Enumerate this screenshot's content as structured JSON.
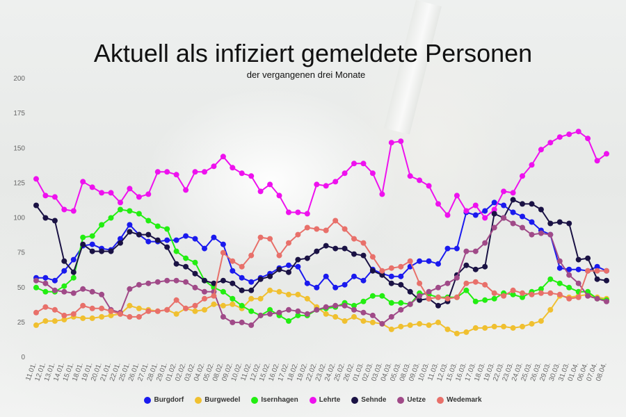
{
  "chart_data": {
    "type": "line",
    "title": "Aktuell als infiziert gemeldete Personen",
    "subtitle": "der vergangenen drei Monate",
    "xlabel": "",
    "ylabel": "",
    "ylim": [
      0,
      200
    ],
    "yticks": [
      0,
      25,
      50,
      75,
      100,
      125,
      150,
      175,
      200
    ],
    "grid": false,
    "legend": "bottom",
    "x": [
      "11.01.",
      "12.01.",
      "13.01.",
      "14.01.",
      "15.01.",
      "18.01.",
      "19.01.",
      "20.01.",
      "21.01.",
      "22.01.",
      "25.01.",
      "26.01.",
      "27.01.",
      "28.01.",
      "29.01.",
      "01.02.",
      "02.02.",
      "03.02.",
      "04.02.",
      "05.02.",
      "08.02.",
      "09.02.",
      "10.02.",
      "11.02.",
      "12.02.",
      "15.02.",
      "16.02.",
      "17.02.",
      "18.02.",
      "19.02.",
      "22.02.",
      "23.02.",
      "24.02.",
      "25.02.",
      "26.02.",
      "01.03.",
      "02.03.",
      "03.03.",
      "04.03.",
      "05.03.",
      "08.03.",
      "09.03.",
      "10.03.",
      "11.03.",
      "12.03.",
      "15.03.",
      "16.03.",
      "17.03.",
      "18.03.",
      "19.03.",
      "22.03.",
      "23.03.",
      "24.03.",
      "25.03.",
      "26.03.",
      "29.03.",
      "30.03.",
      "31.03.",
      "01.04.",
      "06.04.",
      "07.04.",
      "08.04."
    ],
    "xtick_labels": [
      "11.01.",
      "12.01.",
      "13.01.",
      "14.01.",
      "15.01.",
      "18.01.",
      "19.01.",
      "20.01.",
      "21.01.",
      "22.01.",
      "25.01.",
      "26.01.",
      "27.01.",
      "28.01.",
      "29.01.",
      "01.02.",
      "02.02.",
      "03.02.",
      "04.02.",
      "05.02.",
      "08.02.",
      "09.02.",
      "10.02.",
      "11.02.",
      "12.02.",
      "15.02.",
      "16.02.",
      "17.02.",
      "18.02.",
      "19.02.",
      "22.02.",
      "23.02.",
      "24.02.",
      "25.02.",
      "26.02.",
      "01.03.",
      "02.03.",
      "03.03.",
      "04.03.",
      "05.03.",
      "08.03.",
      "09.03.",
      "10.03.",
      "11.03.",
      "12.03.",
      "15.03.",
      "16.03.",
      "17.03.",
      "18.03.",
      "19.03.",
      "22.03.",
      "23.03.",
      "24.03.",
      "25.03.",
      "26.03.",
      "29.03.",
      "30.03.",
      "31.03.",
      "01.04.",
      "06.04.",
      "07.04.",
      "08.04."
    ],
    "series": [
      {
        "name": "Burgdorf",
        "color": "#1a1aee",
        "values": [
          57,
          57,
          55,
          62,
          70,
          80,
          81,
          78,
          77,
          85,
          95,
          88,
          83,
          83,
          84,
          84,
          87,
          85,
          78,
          86,
          81,
          62,
          57,
          54,
          57,
          60,
          64,
          66,
          65,
          53,
          50,
          58,
          50,
          52,
          58,
          55,
          63,
          60,
          58,
          58,
          65,
          69,
          69,
          67,
          78,
          78,
          104,
          102,
          105,
          111,
          109,
          104,
          101,
          97,
          91,
          88,
          64,
          63,
          63,
          62,
          65,
          62
        ]
      },
      {
        "name": "Burgwedel",
        "color": "#f0c030",
        "values": [
          23,
          26,
          26,
          27,
          29,
          28,
          28,
          29,
          30,
          31,
          37,
          35,
          34,
          33,
          34,
          31,
          35,
          33,
          34,
          38,
          37,
          38,
          35,
          42,
          42,
          48,
          47,
          45,
          45,
          42,
          36,
          31,
          29,
          26,
          29,
          26,
          25,
          24,
          20,
          22,
          23,
          24,
          23,
          25,
          20,
          17,
          18,
          21,
          21,
          22,
          22,
          21,
          22,
          24,
          26,
          34,
          44,
          43,
          44,
          45,
          43,
          42
        ]
      },
      {
        "name": "Isernhagen",
        "color": "#22ee11",
        "values": [
          50,
          47,
          47,
          51,
          57,
          86,
          87,
          95,
          100,
          106,
          105,
          103,
          98,
          94,
          92,
          76,
          71,
          68,
          55,
          50,
          47,
          42,
          37,
          33,
          30,
          34,
          30,
          26,
          30,
          30,
          34,
          35,
          36,
          39,
          37,
          40,
          44,
          44,
          39,
          39,
          38,
          46,
          45,
          43,
          43,
          43,
          48,
          40,
          41,
          42,
          46,
          45,
          43,
          47,
          49,
          56,
          53,
          50,
          47,
          47,
          42,
          41
        ]
      },
      {
        "name": "Lehrte",
        "color": "#ee11ee",
        "values": [
          128,
          116,
          115,
          106,
          105,
          126,
          122,
          118,
          118,
          111,
          121,
          115,
          117,
          133,
          133,
          131,
          120,
          133,
          133,
          137,
          144,
          136,
          132,
          130,
          119,
          124,
          116,
          104,
          104,
          103,
          124,
          123,
          126,
          132,
          139,
          139,
          132,
          117,
          154,
          155,
          130,
          127,
          123,
          110,
          102,
          116,
          105,
          109,
          100,
          106,
          119,
          118,
          130,
          138,
          149,
          154,
          158,
          160,
          162,
          157,
          141,
          146
        ]
      },
      {
        "name": "Sehnde",
        "color": "#1a1244",
        "values": [
          109,
          100,
          98,
          69,
          61,
          81,
          76,
          76,
          76,
          82,
          90,
          88,
          88,
          84,
          79,
          67,
          65,
          60,
          55,
          53,
          55,
          53,
          48,
          48,
          56,
          58,
          63,
          61,
          70,
          71,
          76,
          80,
          78,
          78,
          74,
          73,
          62,
          59,
          53,
          52,
          47,
          41,
          42,
          37,
          40,
          59,
          66,
          63,
          65,
          103,
          100,
          113,
          110,
          110,
          106,
          96,
          97,
          96,
          70,
          71,
          56,
          55
        ]
      },
      {
        "name": "Uetze",
        "color": "#a04a88",
        "values": [
          55,
          53,
          48,
          47,
          46,
          49,
          47,
          45,
          34,
          32,
          49,
          52,
          53,
          54,
          55,
          55,
          54,
          50,
          47,
          47,
          29,
          25,
          25,
          23,
          30,
          31,
          32,
          34,
          33,
          31,
          34,
          36,
          37,
          37,
          34,
          32,
          30,
          24,
          29,
          34,
          38,
          44,
          47,
          50,
          53,
          57,
          76,
          76,
          82,
          93,
          100,
          96,
          93,
          88,
          89,
          88,
          69,
          59,
          53,
          44,
          42,
          40
        ]
      },
      {
        "name": "Wedemark",
        "color": "#e8706a",
        "values": [
          32,
          36,
          34,
          30,
          31,
          37,
          35,
          35,
          33,
          31,
          29,
          29,
          33,
          33,
          34,
          41,
          35,
          37,
          42,
          44,
          75,
          69,
          65,
          73,
          86,
          85,
          73,
          82,
          88,
          93,
          92,
          91,
          98,
          92,
          85,
          82,
          72,
          62,
          64,
          65,
          69,
          53,
          42,
          43,
          42,
          43,
          53,
          54,
          52,
          46,
          44,
          48,
          46,
          45,
          46,
          46,
          45,
          42,
          43,
          62,
          62,
          62
        ]
      }
    ]
  }
}
